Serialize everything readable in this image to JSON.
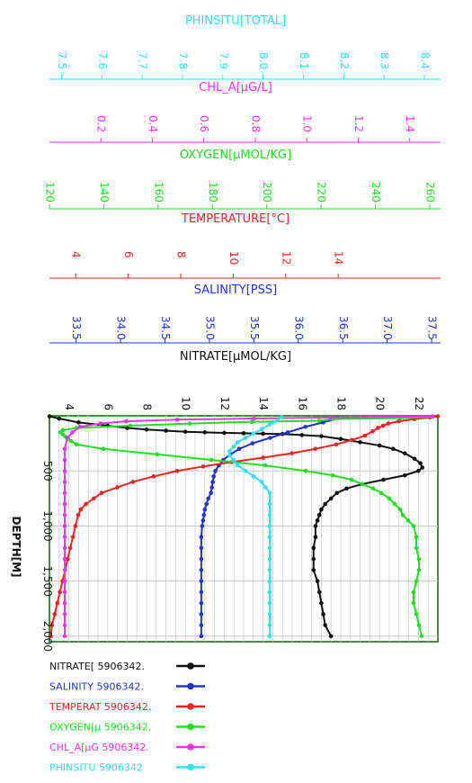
{
  "chart_data": {
    "type": "line",
    "title": "",
    "axes": [
      {
        "key": "phinsitu",
        "label": "PHINSITU[TOTAL]",
        "color": "#33e0f0",
        "min": 7.47,
        "max": 8.44,
        "ticks": [
          7.5,
          7.6,
          7.7,
          7.8,
          7.9,
          8.0,
          8.1,
          8.2,
          8.3,
          8.4
        ],
        "decimals": 1
      },
      {
        "key": "chl",
        "label": "CHL_A[µG/L]",
        "color": "#ee33ee",
        "min": 0.0,
        "max": 1.52,
        "ticks": [
          0.2,
          0.4,
          0.6,
          0.8,
          1.0,
          1.2,
          1.4
        ],
        "decimals": 1
      },
      {
        "key": "oxygen",
        "label": "OXYGEN[µMOL/KG]",
        "color": "#22dd22",
        "min": 120,
        "max": 264,
        "ticks": [
          120,
          140,
          160,
          180,
          200,
          220,
          240,
          260
        ],
        "decimals": 0
      },
      {
        "key": "temperature",
        "label": "TEMPERATURE[°C]",
        "color": "#ee2222",
        "min": 3.0,
        "max": 17.9,
        "ticks": [
          4,
          6,
          8,
          10,
          12,
          14
        ],
        "decimals": 0
      },
      {
        "key": "salinity",
        "label": "SALINITY[PSS]",
        "color": "#2233cc",
        "min": 33.2,
        "max": 37.6,
        "ticks": [
          33.5,
          34.0,
          34.5,
          35.0,
          35.5,
          36.0,
          36.5,
          37.0,
          37.5
        ],
        "decimals": 1
      },
      {
        "key": "nitrate",
        "label": "NITRATE[µMOL/KG]",
        "color": "#111111",
        "min": 3.0,
        "max": 23.0,
        "ticks": [
          4,
          6,
          8,
          10,
          12,
          14,
          16,
          18,
          20,
          22
        ],
        "decimals": 0
      }
    ],
    "y_axis": {
      "label": "DEPTH[M]",
      "min": 0,
      "max": 2050,
      "inverted": true,
      "ticks": [
        500,
        1000,
        1500,
        2000
      ],
      "tick_labels": [
        "500",
        "1,000",
        "1,500",
        "2,000"
      ]
    },
    "grid": true,
    "legend_position": "bottom-left",
    "series": [
      {
        "name": "NITRATE[ 5906342.",
        "axis": "nitrate",
        "color": "#111111",
        "points": [
          [
            3.0,
            5
          ],
          [
            3.5,
            25
          ],
          [
            4.5,
            60
          ],
          [
            6,
            90
          ],
          [
            7,
            110
          ],
          [
            8,
            125
          ],
          [
            9,
            135
          ],
          [
            10,
            145
          ],
          [
            11,
            150
          ],
          [
            12,
            155
          ],
          [
            13,
            158
          ],
          [
            14,
            162
          ],
          [
            15,
            165
          ],
          [
            16,
            175
          ],
          [
            17,
            185
          ],
          [
            18,
            210
          ],
          [
            19,
            240
          ],
          [
            20,
            270
          ],
          [
            20.7,
            300
          ],
          [
            21.3,
            340
          ],
          [
            21.8,
            390
          ],
          [
            22.1,
            430
          ],
          [
            22.2,
            470
          ],
          [
            22.0,
            500
          ],
          [
            21.3,
            540
          ],
          [
            20.2,
            580
          ],
          [
            19.1,
            620
          ],
          [
            18.3,
            660
          ],
          [
            17.8,
            700
          ],
          [
            17.5,
            750
          ],
          [
            17.2,
            800
          ],
          [
            17.0,
            850
          ],
          [
            16.9,
            900
          ],
          [
            16.8,
            950
          ],
          [
            16.7,
            1000
          ],
          [
            16.7,
            1100
          ],
          [
            16.6,
            1200
          ],
          [
            16.6,
            1300
          ],
          [
            16.6,
            1400
          ],
          [
            16.8,
            1500
          ],
          [
            16.9,
            1600
          ],
          [
            17.0,
            1700
          ],
          [
            17.1,
            1800
          ],
          [
            17.2,
            1900
          ],
          [
            17.5,
            2000
          ]
        ]
      },
      {
        "name": "SALINITY 5906342.",
        "axis": "salinity",
        "color": "#2233cc",
        "points": [
          [
            36.48,
            20
          ],
          [
            36.3,
            60
          ],
          [
            36.1,
            100
          ],
          [
            35.9,
            150
          ],
          [
            35.7,
            200
          ],
          [
            35.5,
            250
          ],
          [
            35.35,
            300
          ],
          [
            35.25,
            350
          ],
          [
            35.17,
            400
          ],
          [
            35.12,
            450
          ],
          [
            35.08,
            500
          ],
          [
            35.06,
            550
          ],
          [
            35.05,
            600
          ],
          [
            35.04,
            650
          ],
          [
            35.03,
            700
          ],
          [
            35.0,
            750
          ],
          [
            34.98,
            800
          ],
          [
            34.96,
            850
          ],
          [
            34.95,
            900
          ],
          [
            34.94,
            950
          ],
          [
            34.93,
            1000
          ],
          [
            34.92,
            1100
          ],
          [
            34.92,
            1200
          ],
          [
            34.92,
            1300
          ],
          [
            34.92,
            1400
          ],
          [
            34.92,
            1500
          ],
          [
            34.92,
            1600
          ],
          [
            34.92,
            1700
          ],
          [
            34.92,
            1800
          ],
          [
            34.92,
            1900
          ],
          [
            34.92,
            2000
          ]
        ]
      },
      {
        "name": "TEMPERAT 5906342.",
        "axis": "temperature",
        "color": "#ee2222",
        "points": [
          [
            17.9,
            5
          ],
          [
            17.6,
            15
          ],
          [
            17.0,
            30
          ],
          [
            16.4,
            50
          ],
          [
            16.0,
            70
          ],
          [
            15.8,
            90
          ],
          [
            15.6,
            110
          ],
          [
            15.4,
            140
          ],
          [
            15.1,
            180
          ],
          [
            14.6,
            220
          ],
          [
            14.0,
            260
          ],
          [
            13.2,
            300
          ],
          [
            12.3,
            340
          ],
          [
            11.2,
            380
          ],
          [
            10.0,
            420
          ],
          [
            8.9,
            460
          ],
          [
            7.9,
            500
          ],
          [
            7.0,
            550
          ],
          [
            6.2,
            600
          ],
          [
            5.6,
            650
          ],
          [
            5.0,
            700
          ],
          [
            4.7,
            750
          ],
          [
            4.4,
            800
          ],
          [
            4.2,
            850
          ],
          [
            4.1,
            900
          ],
          [
            4.0,
            1000
          ],
          [
            3.9,
            1100
          ],
          [
            3.8,
            1200
          ],
          [
            3.7,
            1300
          ],
          [
            3.6,
            1400
          ],
          [
            3.5,
            1500
          ],
          [
            3.4,
            1600
          ],
          [
            3.3,
            1700
          ],
          [
            3.2,
            1800
          ],
          [
            3.1,
            1900
          ],
          [
            3.05,
            2000
          ]
        ]
      },
      {
        "name": "OXYGEN[µ 5906342.",
        "axis": "oxygen",
        "color": "#22dd22",
        "points": [
          [
            262,
            10
          ],
          [
            250,
            20
          ],
          [
            225,
            30
          ],
          [
            220,
            45
          ],
          [
            195,
            55
          ],
          [
            172,
            70
          ],
          [
            150,
            90
          ],
          [
            130,
            110
          ],
          [
            125,
            130
          ],
          [
            124,
            150
          ],
          [
            125,
            170
          ],
          [
            126,
            190
          ],
          [
            127,
            210
          ],
          [
            128,
            230
          ],
          [
            130,
            260
          ],
          [
            140,
            300
          ],
          [
            160,
            350
          ],
          [
            180,
            400
          ],
          [
            200,
            450
          ],
          [
            215,
            500
          ],
          [
            225,
            540
          ],
          [
            232,
            580
          ],
          [
            236,
            620
          ],
          [
            240,
            660
          ],
          [
            243,
            700
          ],
          [
            246,
            750
          ],
          [
            248,
            800
          ],
          [
            250,
            850
          ],
          [
            251,
            900
          ],
          [
            253,
            950
          ],
          [
            255,
            1000
          ],
          [
            256,
            1100
          ],
          [
            256,
            1200
          ],
          [
            257,
            1300
          ],
          [
            257,
            1400
          ],
          [
            256,
            1500
          ],
          [
            255,
            1600
          ],
          [
            255,
            1700
          ],
          [
            256,
            1800
          ],
          [
            257,
            1900
          ],
          [
            258,
            2000
          ]
        ]
      },
      {
        "name": "CHL_A[µG 5906342.",
        "axis": "chl",
        "color": "#ee33ee",
        "points": [
          [
            1.5,
            5
          ],
          [
            1.1,
            15
          ],
          [
            0.8,
            25
          ],
          [
            0.5,
            35
          ],
          [
            0.3,
            50
          ],
          [
            0.2,
            70
          ],
          [
            0.12,
            100
          ],
          [
            0.09,
            150
          ],
          [
            0.07,
            200
          ],
          [
            0.06,
            300
          ],
          [
            0.06,
            400
          ],
          [
            0.06,
            500
          ],
          [
            0.06,
            600
          ],
          [
            0.06,
            700
          ],
          [
            0.06,
            800
          ],
          [
            0.06,
            900
          ],
          [
            0.06,
            1000
          ],
          [
            0.06,
            1100
          ],
          [
            0.06,
            1200
          ],
          [
            0.06,
            1300
          ],
          [
            0.06,
            1400
          ],
          [
            0.06,
            1500
          ],
          [
            0.06,
            1600
          ],
          [
            0.06,
            1700
          ],
          [
            0.06,
            1800
          ],
          [
            0.06,
            1900
          ],
          [
            0.06,
            2000
          ]
        ]
      },
      {
        "name": "PHINSITU 5906342",
        "axis": "phinsitu",
        "color": "#33e0f0",
        "points": [
          [
            8.05,
            10
          ],
          [
            8.04,
            40
          ],
          [
            8.02,
            80
          ],
          [
            8.0,
            120
          ],
          [
            7.98,
            160
          ],
          [
            7.96,
            200
          ],
          [
            7.94,
            240
          ],
          [
            7.93,
            280
          ],
          [
            7.92,
            320
          ],
          [
            7.92,
            360
          ],
          [
            7.93,
            400
          ],
          [
            7.94,
            450
          ],
          [
            7.96,
            500
          ],
          [
            7.98,
            550
          ],
          [
            8.0,
            600
          ],
          [
            8.01,
            650
          ],
          [
            8.02,
            700
          ],
          [
            8.02,
            800
          ],
          [
            8.02,
            900
          ],
          [
            8.02,
            1000
          ],
          [
            8.02,
            1100
          ],
          [
            8.02,
            1200
          ],
          [
            8.02,
            1300
          ],
          [
            8.02,
            1400
          ],
          [
            8.02,
            1500
          ],
          [
            8.02,
            1600
          ],
          [
            8.02,
            1700
          ],
          [
            8.02,
            1800
          ],
          [
            8.02,
            1900
          ],
          [
            8.02,
            2000
          ]
        ]
      }
    ]
  }
}
